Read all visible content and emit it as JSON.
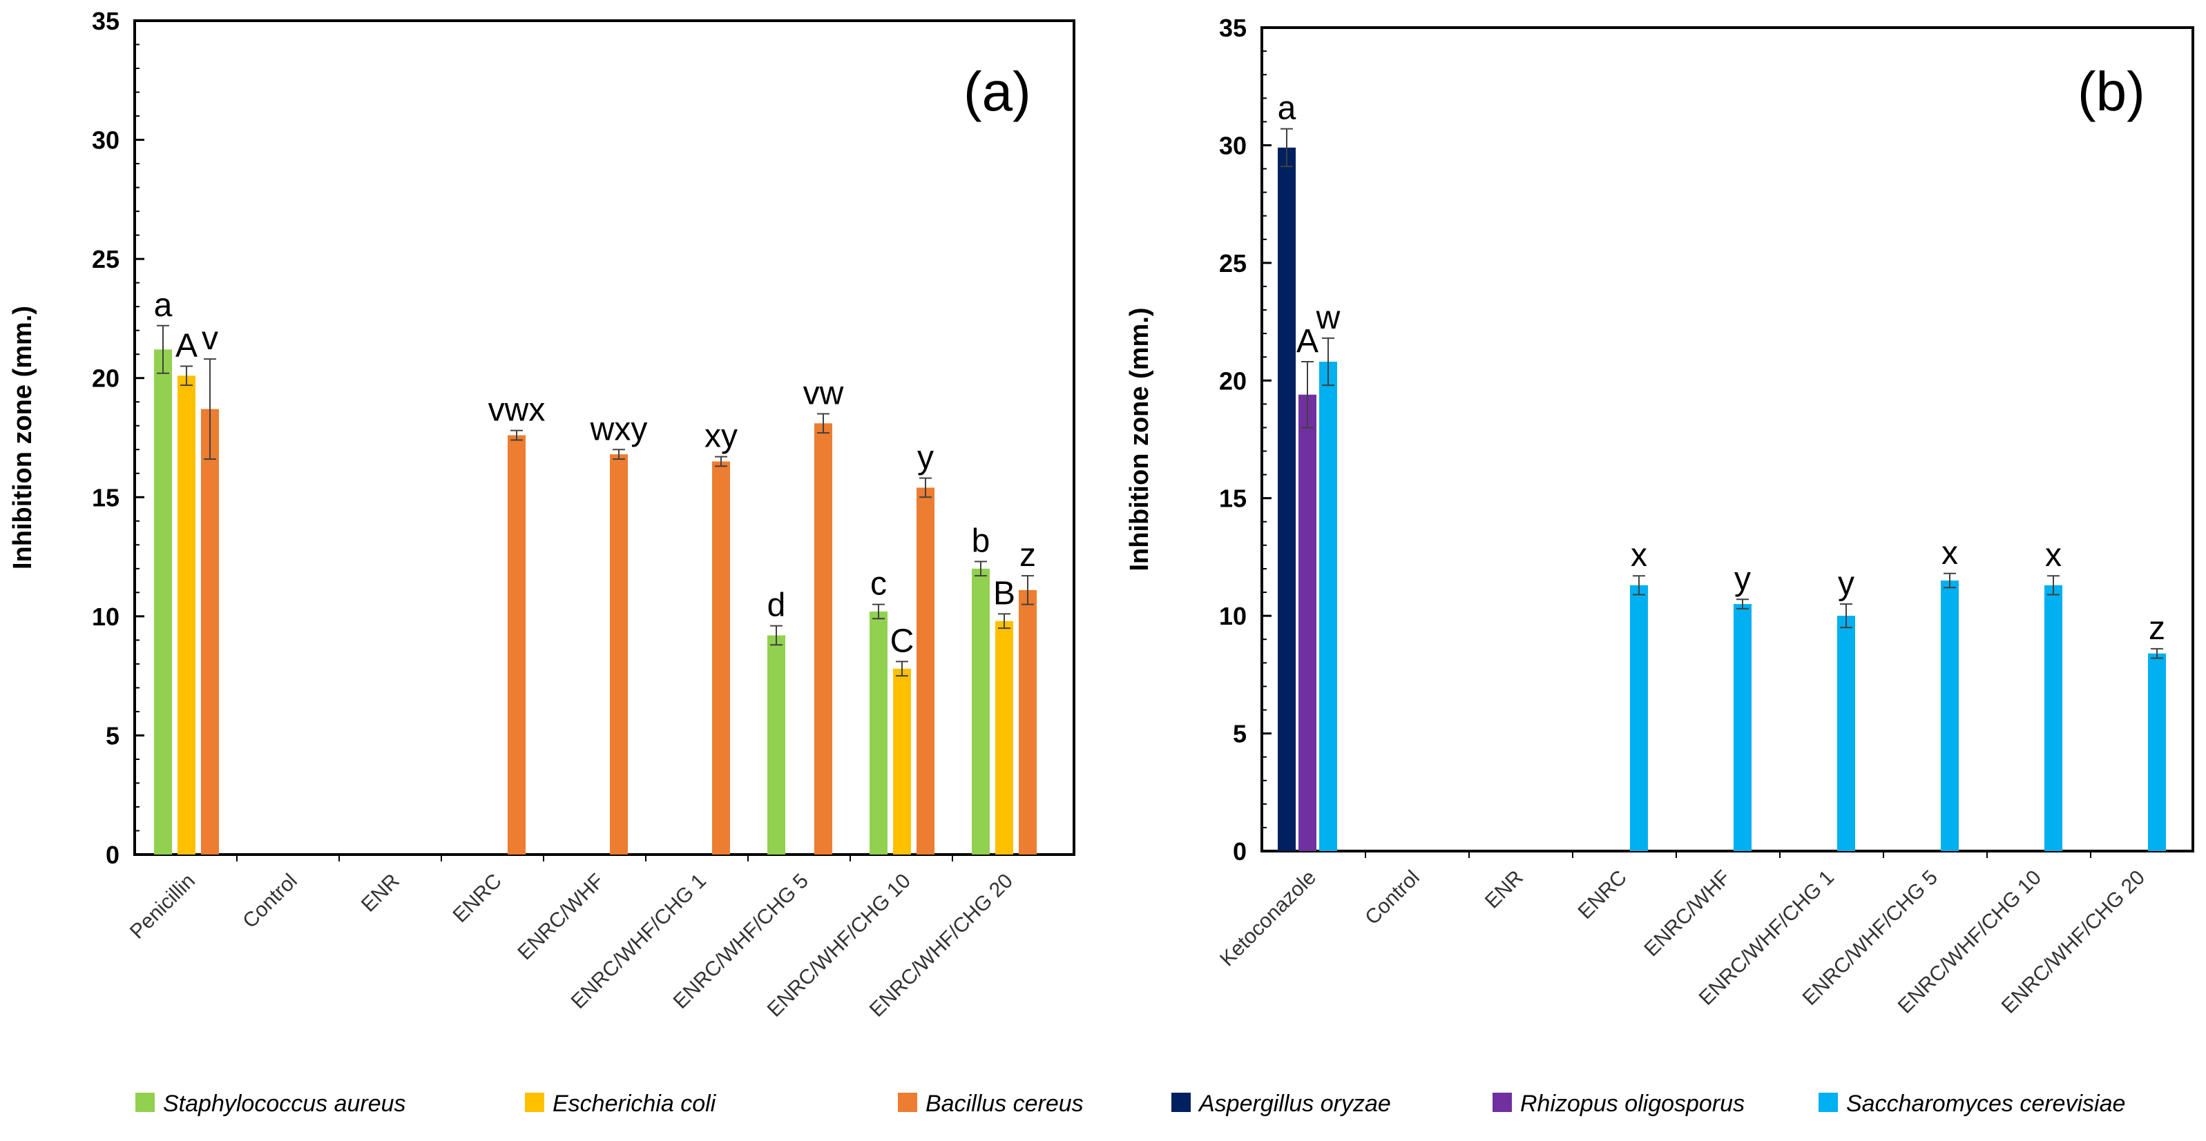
{
  "chart_data": [
    {
      "type": "bar",
      "panel_label": "(a)",
      "ylabel": "Inhibition zone (mm.)",
      "ylim": [
        0,
        35
      ],
      "yticks": [
        "0",
        "5",
        "10",
        "15",
        "20",
        "25",
        "30",
        "35"
      ],
      "grid": false,
      "legend_position": "bottom",
      "categories": [
        "Penicillin",
        "Control",
        "ENR",
        "ENRC",
        "ENRC/WHF",
        "ENRC/WHF/CHG 1",
        "ENRC/WHF/CHG 5",
        "ENRC/WHF/CHG 10",
        "ENRC/WHF/CHG 20"
      ],
      "series": [
        {
          "name": "Staphylococcus aureus",
          "color": "#92D050",
          "values": [
            21.2,
            0,
            0,
            0,
            0,
            0,
            9.2,
            10.2,
            12.0
          ],
          "errors": [
            1.0,
            0,
            0,
            0,
            0,
            0,
            0.4,
            0.3,
            0.3
          ],
          "labels": [
            "a",
            "",
            "",
            "",
            "",
            "",
            "d",
            "c",
            "b"
          ]
        },
        {
          "name": "Escherichia coli",
          "color": "#FFC000",
          "values": [
            20.1,
            0,
            0,
            0,
            0,
            0,
            0,
            7.8,
            9.8
          ],
          "errors": [
            0.4,
            0,
            0,
            0,
            0,
            0,
            0,
            0.3,
            0.3
          ],
          "labels": [
            "A",
            "",
            "",
            "",
            "",
            "",
            "",
            "C",
            "B"
          ]
        },
        {
          "name": "Bacillus cereus",
          "color": "#ED7D31",
          "values": [
            18.7,
            0,
            0,
            17.6,
            16.8,
            16.5,
            18.1,
            15.4,
            11.1
          ],
          "errors": [
            2.1,
            0,
            0,
            0.2,
            0.2,
            0.2,
            0.4,
            0.4,
            0.6
          ],
          "labels": [
            "v",
            "",
            "",
            "vwx",
            "wxy",
            "xy",
            "vw",
            "y",
            "z"
          ]
        }
      ]
    },
    {
      "type": "bar",
      "panel_label": "(b)",
      "ylabel": "Inhibition zone (mm.)",
      "ylim": [
        0,
        35
      ],
      "yticks": [
        "0",
        "5",
        "10",
        "15",
        "20",
        "25",
        "30",
        "35"
      ],
      "grid": false,
      "legend_position": "bottom",
      "categories": [
        "Ketoconazole",
        "Control",
        "ENR",
        "ENRC",
        "ENRC/WHF",
        "ENRC/WHF/CHG 1",
        "ENRC/WHF/CHG 5",
        "ENRC/WHF/CHG 10",
        "ENRC/WHF/CHG 20"
      ],
      "series": [
        {
          "name": "Aspergillus oryzae",
          "color": "#002060",
          "values": [
            29.9,
            0,
            0,
            0,
            0,
            0,
            0,
            0,
            0
          ],
          "errors": [
            0.8,
            0,
            0,
            0,
            0,
            0,
            0,
            0,
            0
          ],
          "labels": [
            "a",
            "",
            "",
            "",
            "",
            "",
            "",
            "",
            ""
          ]
        },
        {
          "name": "Rhizopus oligosporus",
          "color": "#7030A0",
          "values": [
            19.4,
            0,
            0,
            0,
            0,
            0,
            0,
            0,
            0
          ],
          "errors": [
            1.4,
            0,
            0,
            0,
            0,
            0,
            0,
            0,
            0
          ],
          "labels": [
            "A",
            "",
            "",
            "",
            "",
            "",
            "",
            "",
            ""
          ]
        },
        {
          "name": "Saccharomyces cerevisiae",
          "color": "#00B0F0",
          "values": [
            20.8,
            0,
            0,
            11.3,
            10.5,
            10.0,
            11.5,
            11.3,
            8.4
          ],
          "errors": [
            1.0,
            0,
            0,
            0.4,
            0.2,
            0.5,
            0.3,
            0.4,
            0.2
          ],
          "labels": [
            "w",
            "",
            "",
            "x",
            "y",
            "y",
            "x",
            "x",
            "z"
          ]
        }
      ]
    }
  ]
}
